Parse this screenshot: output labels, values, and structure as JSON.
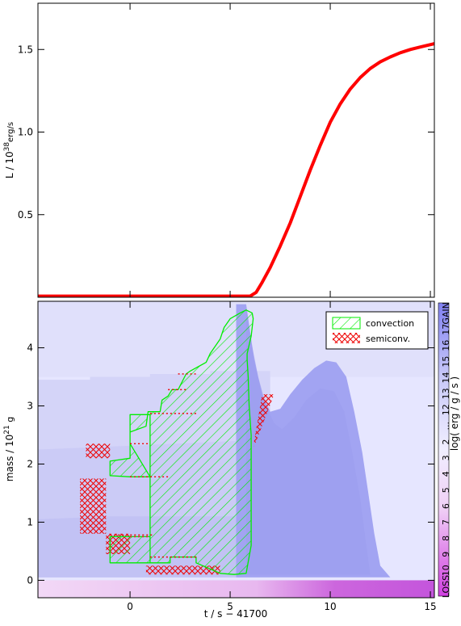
{
  "chart_data": [
    {
      "type": "line",
      "title": "",
      "xlabel": "",
      "ylabel_main": "L / 10",
      "ylabel_exp": "38",
      "ylabel_unit": "erg/s",
      "xlim": [
        -4.6,
        15.2
      ],
      "ylim": [
        0.0,
        1.78
      ],
      "yticks": [
        0.5,
        1.0,
        1.5
      ],
      "ytick_labels": [
        "0.5",
        "1.0",
        "1.5"
      ],
      "line_color": "#ff0000",
      "series": [
        {
          "x": [
            -4.6,
            -2.0,
            0.0,
            2.0,
            4.0,
            5.5,
            6.0,
            6.3,
            6.6,
            7.0,
            7.5,
            8.0,
            8.5,
            9.0,
            9.5,
            10.0,
            10.5,
            11.0,
            11.5,
            12.0,
            12.5,
            13.0,
            13.5,
            14.0,
            14.5,
            15.2
          ],
          "y": [
            0.0,
            0.0,
            0.0,
            0.0,
            0.0,
            0.0,
            0.005,
            0.03,
            0.09,
            0.18,
            0.31,
            0.45,
            0.61,
            0.77,
            0.92,
            1.06,
            1.17,
            1.26,
            1.33,
            1.385,
            1.425,
            1.455,
            1.48,
            1.5,
            1.515,
            1.535
          ]
        }
      ]
    },
    {
      "type": "kippenhahn",
      "xlabel": "t / s − 41700",
      "ylabel_main": "mass / 10",
      "ylabel_exp": "21",
      "ylabel_unit": " g",
      "xlim": [
        -4.6,
        15.2
      ],
      "ylim": [
        -0.3,
        4.8
      ],
      "xticks": [
        0,
        5,
        10,
        15
      ],
      "xtick_labels": [
        "0",
        "5",
        "10",
        "15"
      ],
      "yticks": [
        0,
        1,
        2,
        3,
        4
      ],
      "ytick_labels": [
        "0",
        "1",
        "2",
        "3",
        "4"
      ],
      "legend": [
        {
          "label": "convection",
          "color": "#00ee00",
          "pattern": "hatch"
        },
        {
          "label": "semiconv.",
          "color": "#ee0000",
          "pattern": "crosshatch"
        }
      ],
      "legend_position": "top-right",
      "colorbar": {
        "title": "log( erg / g / s )",
        "labels": [
          "LOSS",
          "10",
          "9",
          "8",
          "7",
          "6",
          "5",
          "4",
          "3",
          "2",
          "...",
          "12",
          "13",
          "14",
          "15",
          "16",
          "17",
          "GAIN"
        ]
      },
      "convection_outline": {
        "x": [
          1.0,
          1.0,
          -1.0,
          -1.0,
          1.0,
          1.0,
          2.0,
          2.0,
          3.3,
          3.3,
          4.5,
          5.2,
          5.8,
          6.05,
          6.05,
          5.95,
          5.9,
          5.85,
          5.85,
          5.95,
          6.05,
          6.15,
          6.1,
          5.8,
          5.5,
          5.0,
          4.7,
          4.6,
          4.5,
          4.3,
          4.0,
          3.8,
          3.0,
          2.8,
          2.4,
          2.1,
          1.9,
          1.6,
          1.5,
          0.9,
          0.8,
          0.0,
          0.0,
          -1.0,
          -1.0,
          0.0,
          0.0,
          1.0,
          1.0,
          0.0,
          0.0,
          1.0
        ],
        "y": [
          0.4,
          0.3,
          0.3,
          0.75,
          0.75,
          0.3,
          0.3,
          0.4,
          0.4,
          0.3,
          0.12,
          0.1,
          0.12,
          0.6,
          2.5,
          3.0,
          3.5,
          3.8,
          3.9,
          4.05,
          4.2,
          4.5,
          4.6,
          4.65,
          4.6,
          4.5,
          4.35,
          4.25,
          4.15,
          4.05,
          3.9,
          3.75,
          3.6,
          3.55,
          3.28,
          3.28,
          3.17,
          3.1,
          2.9,
          2.9,
          2.65,
          2.55,
          2.1,
          2.05,
          1.8,
          1.78,
          1.78,
          1.78,
          1.78,
          2.35,
          2.85,
          2.85
        ]
      },
      "semiconv_regions": [
        {
          "x": [
            -2.5,
            -1.2,
            -1.2,
            -2.5
          ],
          "y": [
            0.8,
            0.8,
            1.75,
            1.75
          ]
        },
        {
          "x": [
            -2.2,
            -1.0,
            -1.0,
            -2.2
          ],
          "y": [
            2.1,
            2.1,
            2.35,
            2.35
          ]
        },
        {
          "x": [
            -1.2,
            0.0,
            0.0,
            -1.2
          ],
          "y": [
            0.45,
            0.45,
            0.8,
            0.8
          ]
        },
        {
          "x": [
            0.8,
            4.5,
            4.5,
            0.8
          ],
          "y": [
            0.1,
            0.1,
            0.25,
            0.25
          ]
        },
        {
          "x": [
            6.2,
            7.2,
            6.6,
            6.2
          ],
          "y": [
            2.3,
            3.2,
            3.2,
            2.4
          ]
        }
      ],
      "heating_region_colors": {
        "background": "#e6e6ff",
        "low_layer": "#c9c9f5",
        "plume": "#a2a4f2",
        "loss_band": "#c060e0"
      }
    }
  ]
}
